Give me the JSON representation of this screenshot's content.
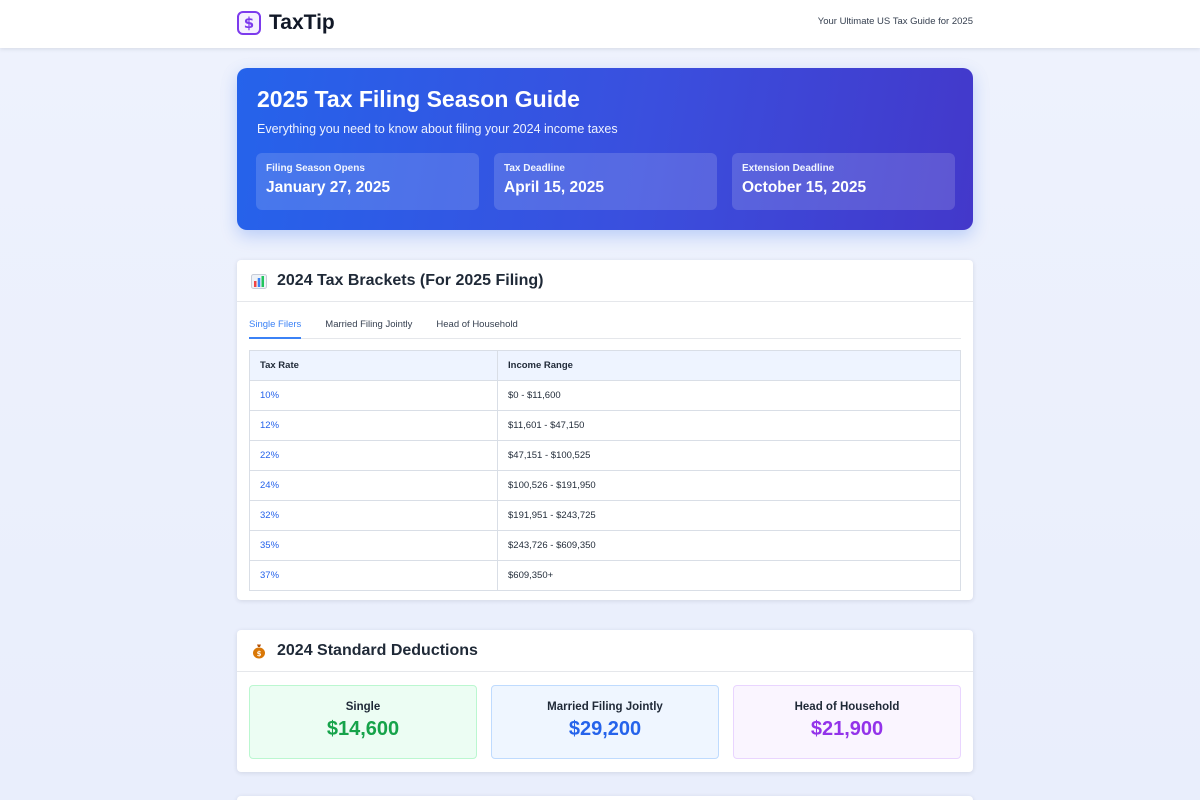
{
  "header": {
    "brand_icon": "dollar-icon",
    "brand_name": "TaxTip",
    "tagline": "Your Ultimate US Tax Guide for 2025"
  },
  "hero": {
    "title": "2025 Tax Filing Season Guide",
    "subtitle": "Everything you need to know about filing your 2024 income taxes",
    "dates": [
      {
        "label": "Filing Season Opens",
        "value": "January 27, 2025"
      },
      {
        "label": "Tax Deadline",
        "value": "April 15, 2025"
      },
      {
        "label": "Extension Deadline",
        "value": "October 15, 2025"
      }
    ]
  },
  "brackets": {
    "icon": "bar-chart-icon",
    "title": "2024 Tax Brackets (For 2025 Filing)",
    "tabs": [
      {
        "label": "Single Filers",
        "active": true
      },
      {
        "label": "Married Filing Jointly",
        "active": false
      },
      {
        "label": "Head of Household",
        "active": false
      }
    ],
    "columns": [
      "Tax Rate",
      "Income Range"
    ],
    "rows": [
      {
        "rate": "10%",
        "range": "$0 - $11,600"
      },
      {
        "rate": "12%",
        "range": "$11,601 - $47,150"
      },
      {
        "rate": "22%",
        "range": "$47,151 - $100,525"
      },
      {
        "rate": "24%",
        "range": "$100,526 - $191,950"
      },
      {
        "rate": "32%",
        "range": "$191,951 - $243,725"
      },
      {
        "rate": "35%",
        "range": "$243,726 - $609,350"
      },
      {
        "rate": "37%",
        "range": "$609,350+"
      }
    ]
  },
  "deductions": {
    "icon": "money-bag-icon",
    "title": "2024 Standard Deductions",
    "items": [
      {
        "label": "Single",
        "value": "$14,600",
        "color": "#16a34a"
      },
      {
        "label": "Married Filing Jointly",
        "value": "$29,200",
        "color": "#2563eb"
      },
      {
        "label": "Head of Household",
        "value": "$21,900",
        "color": "#9333ea"
      }
    ]
  },
  "colors": {
    "accent": "#2563eb",
    "hero_gradient_start": "#2563eb",
    "hero_gradient_end": "#4338ca",
    "brand": "#7c3aed"
  }
}
